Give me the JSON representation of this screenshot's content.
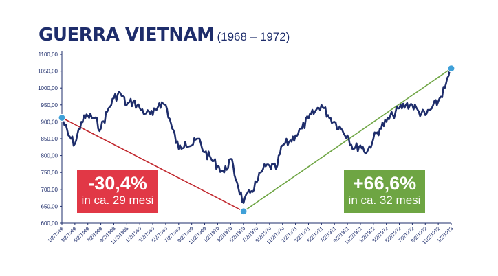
{
  "title": {
    "main": "GUERRA VIETNAM",
    "sub": "(1968 – 1972)"
  },
  "colors": {
    "series": "#1e2d6b",
    "drop": "#c1272d",
    "rise": "#6ea543",
    "drop_box": "#e13846",
    "marker": "#3fa0d8",
    "axis": "#1e2d6b"
  },
  "callouts": {
    "drop": {
      "value": "-30,4%",
      "text": "in ca. 29 mesi"
    },
    "rise": {
      "value": "+66,6%",
      "text": "in ca. 32 mesi"
    }
  },
  "chart_data": {
    "type": "line",
    "title": "GUERRA VIETNAM (1968 – 1972)",
    "xlabel": "",
    "ylabel": "",
    "ylim": [
      600,
      1100
    ],
    "grid": false,
    "y_ticks": [
      "600,00",
      "650,00",
      "700,00",
      "750,00",
      "800,00",
      "850,00",
      "900,00",
      "950,00",
      "1000,00",
      "1050,00",
      "1100,00"
    ],
    "y_tick_values": [
      600,
      650,
      700,
      750,
      800,
      850,
      900,
      950,
      1000,
      1050,
      1100
    ],
    "x_ticks": [
      "1/2/1968",
      "3/2/1968",
      "5/2/1968",
      "7/2/1968",
      "9/2/1968",
      "11/2/1968",
      "1/2/1969",
      "3/2/1969",
      "5/2/1969",
      "7/2/1969",
      "9/2/1969",
      "11/2/1969",
      "1/2/1970",
      "3/2/1970",
      "5/2/1970",
      "7/2/1970",
      "9/2/1970",
      "11/2/1970",
      "1/2/1971",
      "3/2/1971",
      "5/2/1971",
      "7/2/1971",
      "9/2/1971",
      "11/2/1971",
      "1/2/1972",
      "3/2/1972",
      "5/2/1972",
      "7/2/1972",
      "9/2/1972",
      "11/2/1972",
      "1/2/1973"
    ],
    "series": [
      {
        "x": [
          "1968-01",
          "1968-02",
          "1968-03",
          "1968-04",
          "1968-05",
          "1968-06",
          "1968-07",
          "1968-08",
          "1968-09",
          "1968-10",
          "1968-11",
          "1968-12",
          "1969-01",
          "1969-02",
          "1969-03",
          "1969-04",
          "1969-05",
          "1969-06",
          "1969-07",
          "1969-08",
          "1969-09",
          "1969-10",
          "1969-11",
          "1969-12",
          "1970-01",
          "1970-02",
          "1970-03",
          "1970-04",
          "1970-05",
          "1970-06",
          "1970-07",
          "1970-08",
          "1970-09",
          "1970-10",
          "1970-11",
          "1970-12",
          "1971-01",
          "1971-02",
          "1971-03",
          "1971-04",
          "1971-05",
          "1971-06",
          "1971-07",
          "1971-08",
          "1971-09",
          "1971-10",
          "1971-11",
          "1971-12",
          "1972-01",
          "1972-02",
          "1972-03",
          "1972-04",
          "1972-05",
          "1972-06",
          "1972-07",
          "1972-08",
          "1972-09",
          "1972-10",
          "1972-11",
          "1972-12",
          "1973-01"
        ],
        "values": [
          912,
          860,
          835,
          900,
          918,
          910,
          880,
          930,
          970,
          985,
          950,
          960,
          940,
          925,
          920,
          955,
          950,
          880,
          820,
          840,
          830,
          850,
          810,
          790,
          770,
          750,
          790,
          720,
          660,
          690,
          720,
          760,
          770,
          760,
          830,
          840,
          860,
          880,
          910,
          930,
          950,
          920,
          900,
          880,
          860,
          820,
          830,
          810,
          850,
          880,
          900,
          920,
          940,
          950,
          950,
          930,
          920,
          940,
          960,
          1000,
          1055
        ]
      }
    ],
    "annotations": [
      {
        "from": "1968-01",
        "from_value": 912,
        "to": "1970-05",
        "to_value": 635,
        "label": "-30,4%",
        "note": "in ca. 29 mesi"
      },
      {
        "from": "1970-05",
        "from_value": 635,
        "to": "1973-01",
        "to_value": 1058,
        "label": "+66,6%",
        "note": "in ca. 32 mesi"
      }
    ]
  }
}
